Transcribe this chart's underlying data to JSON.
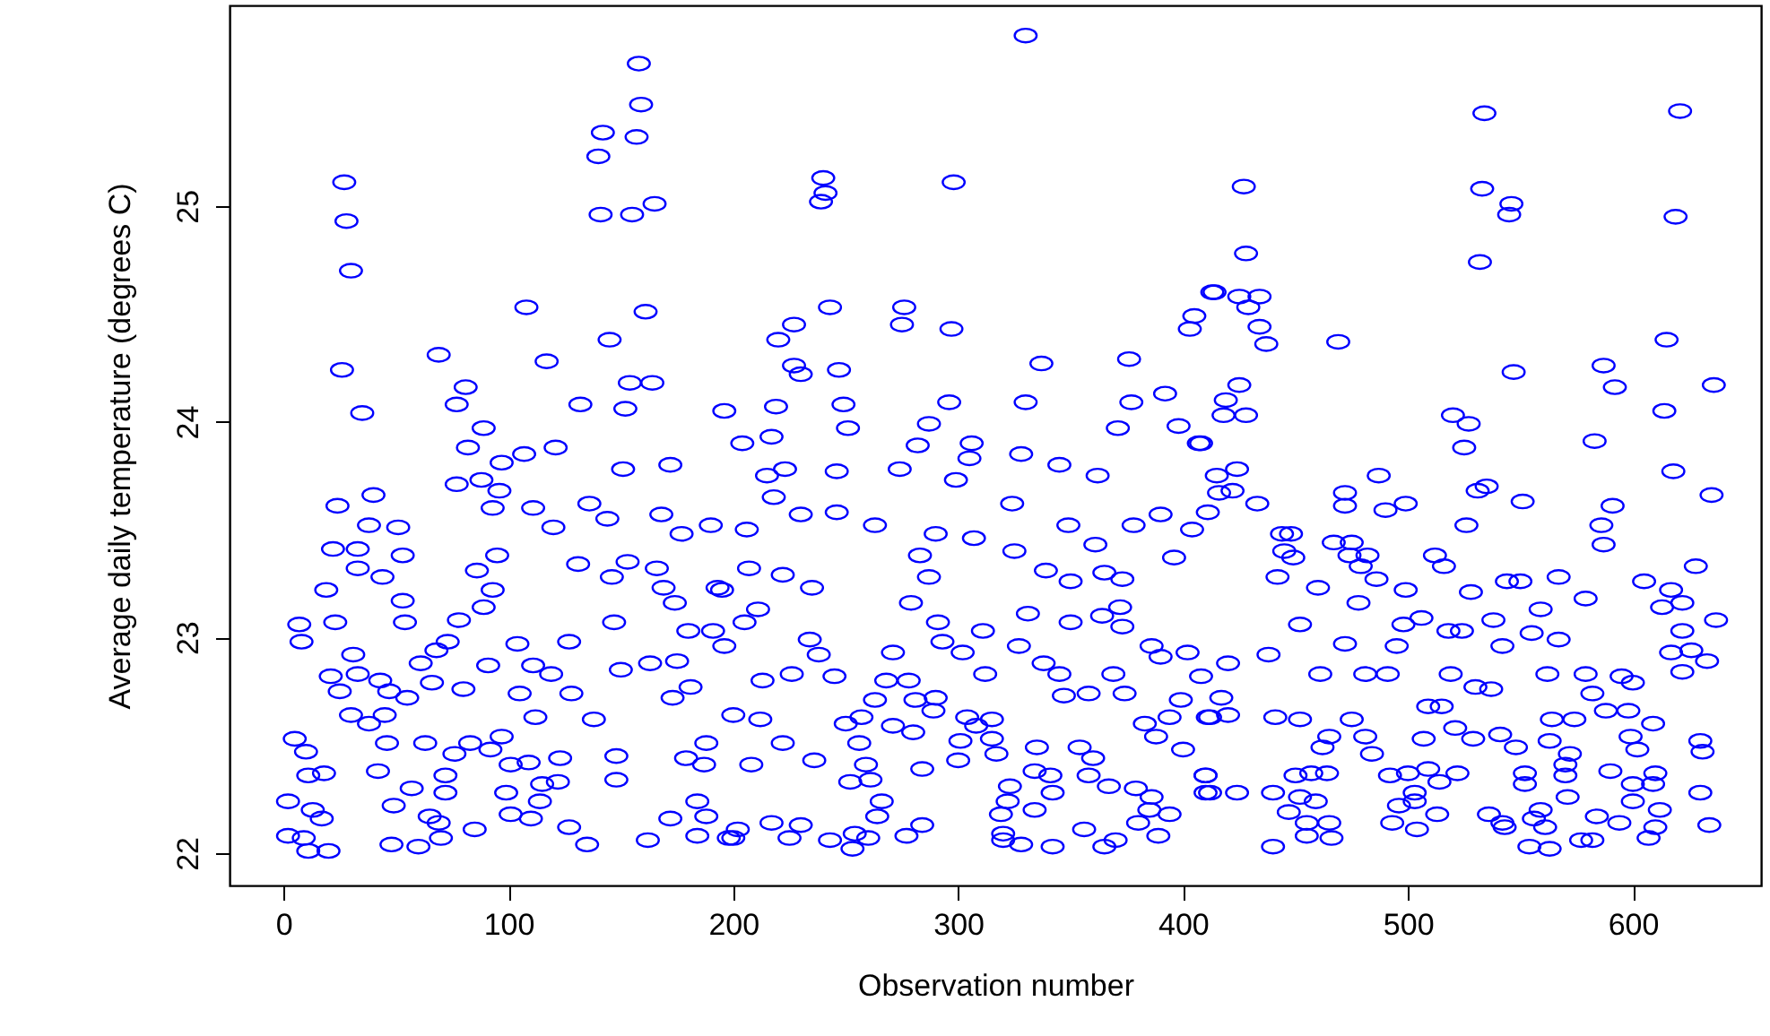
{
  "chart_data": {
    "type": "scatter",
    "xlabel": "Observation number",
    "ylabel": "Average daily temperature (degrees C)",
    "xlim": [
      -24,
      657
    ],
    "ylim": [
      21.85,
      25.93
    ],
    "xticks": [
      0,
      100,
      200,
      300,
      400,
      500,
      600
    ],
    "yticks": [
      22,
      23,
      24,
      25
    ],
    "grid": false,
    "marker": "circle",
    "series": [
      {
        "color": "#0000ff",
        "x": [
          158,
          159,
          142,
          157,
          140,
          27,
          28,
          30,
          141,
          155,
          165,
          108,
          161,
          145,
          69,
          26,
          117,
          154,
          164,
          81,
          77,
          35,
          132,
          152,
          89,
          82,
          121,
          107,
          97,
          151,
          172,
          88,
          77,
          96,
          40,
          24,
          93,
          111,
          136,
          168,
          144,
          51,
          38,
          120,
          190,
          177,
          22,
          33,
          53,
          95,
          131,
          153,
          33,
          86,
          44,
          146,
          166,
          19,
          93,
          53,
          89,
          169,
          193,
          174,
          7,
          23,
          78,
          54,
          147,
          8,
          73,
          104,
          127,
          180,
          191,
          31,
          68,
          61,
          91,
          111,
          150,
          163,
          175,
          21,
          33,
          43,
          66,
          119,
          25,
          47,
          55,
          80,
          105,
          128,
          181,
          173,
          30,
          45,
          38,
          112,
          138,
          5,
          10,
          46,
          63,
          83,
          97,
          76,
          92,
          42,
          101,
          109,
          123,
          148,
          179,
          188,
          11,
          18,
          57,
          72,
          72,
          99,
          115,
          122,
          148,
          187,
          2,
          13,
          49,
          114,
          184,
          17,
          65,
          69,
          101,
          110,
          172,
          188,
          2,
          9,
          85,
          127,
          184,
          11,
          20,
          48,
          60,
          70,
          135,
          162,
          198,
          330,
          240,
          241,
          239,
          298,
          243,
          276,
          275,
          297,
          227,
          220,
          403,
          405,
          413,
          227,
          230,
          247,
          337,
          376,
          219,
          249,
          296,
          330,
          377,
          392,
          196,
          251,
          287,
          371,
          398,
          217,
          204,
          282,
          306,
          407,
          223,
          215,
          246,
          274,
          305,
          328,
          345,
          362,
          299,
          218,
          324,
          230,
          246,
          263,
          290,
          349,
          378,
          390,
          206,
          307,
          361,
          404,
          283,
          325,
          396,
          207,
          222,
          287,
          339,
          350,
          365,
          373,
          235,
          195,
          279,
          331,
          372,
          211,
          205,
          291,
          311,
          350,
          364,
          373,
          234,
          293,
          327,
          386,
          196,
          238,
          271,
          302,
          390,
          402,
          213,
          226,
          245,
          268,
          278,
          312,
          338,
          345,
          369,
          408,
          263,
          281,
          290,
          347,
          358,
          374,
          399,
          200,
          212,
          257,
          289,
          304,
          315,
          394,
          411,
          250,
          271,
          280,
          308,
          383,
          388,
          222,
          256,
          301,
          315,
          335,
          354,
          400,
          208,
          236,
          259,
          284,
          300,
          317,
          334,
          360,
          252,
          261,
          323,
          341,
          358,
          367,
          379,
          410,
          410,
          266,
          322,
          342,
          386,
          264,
          319,
          334,
          385,
          394,
          202,
          217,
          230,
          284,
          380,
          356,
          200,
          225,
          243,
          254,
          260,
          277,
          320,
          389,
          253,
          320,
          328,
          342,
          365,
          370,
          534,
          621,
          427,
          533,
          546,
          545,
          619,
          428,
          532,
          414,
          425,
          434,
          429,
          434,
          437,
          469,
          615,
          547,
          587,
          592,
          636,
          425,
          419,
          418,
          428,
          520,
          527,
          525,
          614,
          583,
          618,
          408,
          424,
          415,
          416,
          422,
          411,
          433,
          472,
          472,
          487,
          531,
          535,
          551,
          635,
          499,
          490,
          591,
          586,
          587,
          526,
          444,
          448,
          445,
          449,
          467,
          475,
          474,
          479,
          482,
          512,
          516,
          628,
          442,
          460,
          486,
          499,
          528,
          544,
          550,
          567,
          605,
          617,
          478,
          559,
          579,
          613,
          622,
          637,
          452,
          498,
          506,
          538,
          518,
          524,
          555,
          567,
          622,
          472,
          495,
          542,
          617,
          626,
          420,
          438,
          461,
          481,
          491,
          519,
          562,
          579,
          595,
          622,
          633,
          417,
          530,
          537,
          582,
          600,
          412,
          420,
          441,
          452,
          475,
          509,
          515,
          564,
          574,
          588,
          598,
          609,
          465,
          481,
          507,
          521,
          541,
          548,
          563,
          599,
          630,
          462,
          484,
          529,
          572,
          602,
          631,
          570,
          590,
          570,
          410,
          450,
          457,
          464,
          492,
          500,
          509,
          522,
          552,
          610,
          412,
          424,
          440,
          452,
          459,
          503,
          514,
          552,
          571,
          600,
          609,
          630,
          496,
          503,
          600,
          447,
          455,
          465,
          493,
          513,
          536,
          559,
          584,
          612,
          542,
          556,
          594,
          634,
          455,
          504,
          543,
          561,
          610,
          440,
          466,
          554,
          563,
          577,
          582,
          607
        ],
        "values": [
          25.66,
          25.47,
          25.34,
          25.32,
          25.23,
          25.11,
          24.93,
          24.7,
          24.96,
          24.96,
          25.01,
          24.53,
          24.51,
          24.38,
          24.31,
          24.24,
          24.28,
          24.18,
          24.18,
          24.16,
          24.08,
          24.04,
          24.08,
          24.06,
          23.97,
          23.88,
          23.88,
          23.85,
          23.81,
          23.78,
          23.8,
          23.73,
          23.71,
          23.68,
          23.66,
          23.61,
          23.6,
          23.6,
          23.62,
          23.57,
          23.55,
          23.51,
          23.52,
          23.51,
          23.52,
          23.48,
          23.41,
          23.41,
          23.38,
          23.38,
          23.34,
          23.35,
          23.32,
          23.31,
          23.28,
          23.28,
          23.32,
          23.22,
          23.22,
          23.17,
          23.14,
          23.23,
          23.23,
          23.16,
          23.06,
          23.07,
          23.08,
          23.07,
          23.07,
          22.98,
          22.98,
          22.97,
          22.98,
          23.03,
          23.03,
          22.92,
          22.94,
          22.88,
          22.87,
          22.87,
          22.85,
          22.88,
          22.89,
          22.82,
          22.83,
          22.8,
          22.79,
          22.83,
          22.75,
          22.75,
          22.72,
          22.76,
          22.74,
          22.74,
          22.77,
          22.72,
          22.64,
          22.64,
          22.6,
          22.63,
          22.62,
          22.53,
          22.47,
          22.51,
          22.51,
          22.51,
          22.54,
          22.46,
          22.48,
          22.38,
          22.41,
          22.42,
          22.44,
          22.45,
          22.44,
          22.51,
          22.36,
          22.37,
          22.3,
          22.36,
          22.28,
          22.28,
          22.32,
          22.33,
          22.34,
          22.41,
          22.24,
          22.2,
          22.22,
          22.24,
          22.24,
          22.16,
          22.17,
          22.14,
          22.18,
          22.16,
          22.16,
          22.17,
          22.08,
          22.07,
          22.11,
          22.12,
          22.08,
          22.01,
          22.01,
          22.04,
          22.03,
          22.07,
          22.04,
          22.06,
          22.07,
          25.79,
          25.13,
          25.06,
          25.02,
          25.11,
          24.53,
          24.53,
          24.45,
          24.43,
          24.45,
          24.38,
          24.43,
          24.49,
          24.6,
          24.26,
          24.22,
          24.24,
          24.27,
          24.29,
          24.07,
          24.08,
          24.09,
          24.09,
          24.09,
          24.13,
          24.05,
          23.97,
          23.99,
          23.97,
          23.98,
          23.93,
          23.9,
          23.89,
          23.9,
          23.9,
          23.78,
          23.75,
          23.77,
          23.78,
          23.83,
          23.85,
          23.8,
          23.75,
          23.73,
          23.65,
          23.62,
          23.57,
          23.58,
          23.52,
          23.48,
          23.52,
          23.52,
          23.57,
          23.5,
          23.46,
          23.43,
          23.5,
          23.38,
          23.4,
          23.37,
          23.32,
          23.29,
          23.28,
          23.31,
          23.26,
          23.3,
          23.27,
          23.23,
          23.22,
          23.16,
          23.11,
          23.14,
          23.13,
          23.07,
          23.07,
          23.03,
          23.07,
          23.1,
          23.05,
          22.99,
          22.98,
          22.96,
          22.96,
          22.96,
          22.92,
          22.93,
          22.93,
          22.91,
          22.93,
          22.8,
          22.83,
          22.82,
          22.8,
          22.8,
          22.83,
          22.88,
          22.83,
          22.83,
          22.82,
          22.71,
          22.71,
          22.72,
          22.73,
          22.74,
          22.74,
          22.71,
          22.64,
          22.62,
          22.63,
          22.66,
          22.63,
          22.62,
          22.63,
          22.63,
          22.6,
          22.59,
          22.56,
          22.59,
          22.6,
          22.54,
          22.51,
          22.51,
          22.52,
          22.53,
          22.49,
          22.49,
          22.48,
          22.41,
          22.43,
          22.41,
          22.39,
          22.43,
          22.46,
          22.38,
          22.44,
          22.33,
          22.34,
          22.31,
          22.36,
          22.36,
          22.31,
          22.3,
          22.36,
          22.28,
          22.24,
          22.24,
          22.28,
          22.26,
          22.17,
          22.18,
          22.2,
          22.2,
          22.18,
          22.11,
          22.14,
          22.13,
          22.13,
          22.14,
          22.11,
          22.07,
          22.07,
          22.06,
          22.09,
          22.07,
          22.08,
          22.09,
          22.08,
          22.02,
          22.06,
          22.04,
          22.03,
          22.03,
          22.06,
          25.43,
          25.44,
          25.09,
          25.08,
          25.01,
          24.96,
          24.95,
          24.78,
          24.74,
          24.6,
          24.58,
          24.58,
          24.53,
          24.44,
          24.36,
          24.37,
          24.38,
          24.23,
          24.26,
          24.16,
          24.17,
          24.17,
          24.1,
          24.03,
          24.03,
          24.03,
          23.99,
          23.88,
          24.05,
          23.91,
          23.77,
          23.9,
          23.78,
          23.75,
          23.67,
          23.68,
          23.58,
          23.62,
          23.67,
          23.61,
          23.75,
          23.68,
          23.7,
          23.63,
          23.66,
          23.62,
          23.59,
          23.61,
          23.52,
          23.43,
          23.52,
          23.48,
          23.48,
          23.4,
          23.37,
          23.44,
          23.44,
          23.38,
          23.33,
          23.38,
          23.38,
          23.33,
          23.33,
          23.28,
          23.23,
          23.27,
          23.22,
          23.21,
          23.26,
          23.26,
          23.28,
          23.26,
          23.22,
          23.16,
          23.13,
          23.18,
          23.14,
          23.16,
          23.08,
          23.06,
          23.06,
          23.09,
          23.08,
          23.03,
          23.03,
          23.02,
          22.99,
          23.03,
          22.97,
          22.96,
          22.96,
          22.93,
          22.94,
          22.88,
          22.92,
          22.83,
          22.83,
          22.83,
          22.83,
          22.83,
          22.83,
          22.82,
          22.84,
          22.89,
          22.72,
          22.77,
          22.76,
          22.74,
          22.79,
          22.63,
          22.64,
          22.63,
          22.62,
          22.62,
          22.68,
          22.68,
          22.62,
          22.62,
          22.66,
          22.66,
          22.6,
          22.54,
          22.54,
          22.53,
          22.58,
          22.55,
          22.49,
          22.52,
          22.54,
          22.52,
          22.49,
          22.46,
          22.53,
          22.46,
          22.48,
          22.47,
          22.41,
          22.38,
          22.36,
          22.36,
          22.36,
          22.37,
          22.37,
          22.36,
          22.37,
          22.39,
          22.37,
          22.37,
          22.37,
          22.28,
          22.28,
          22.28,
          22.26,
          22.24,
          22.28,
          22.33,
          22.32,
          22.26,
          22.32,
          22.32,
          22.28,
          22.22,
          22.24,
          22.24,
          22.19,
          22.14,
          22.14,
          22.14,
          22.18,
          22.18,
          22.2,
          22.17,
          22.2,
          22.14,
          22.16,
          22.14,
          22.13,
          22.08,
          22.11,
          22.12,
          22.12,
          22.12,
          22.03,
          22.07,
          22.03,
          22.02,
          22.06,
          22.06,
          22.07
        ]
      }
    ]
  }
}
